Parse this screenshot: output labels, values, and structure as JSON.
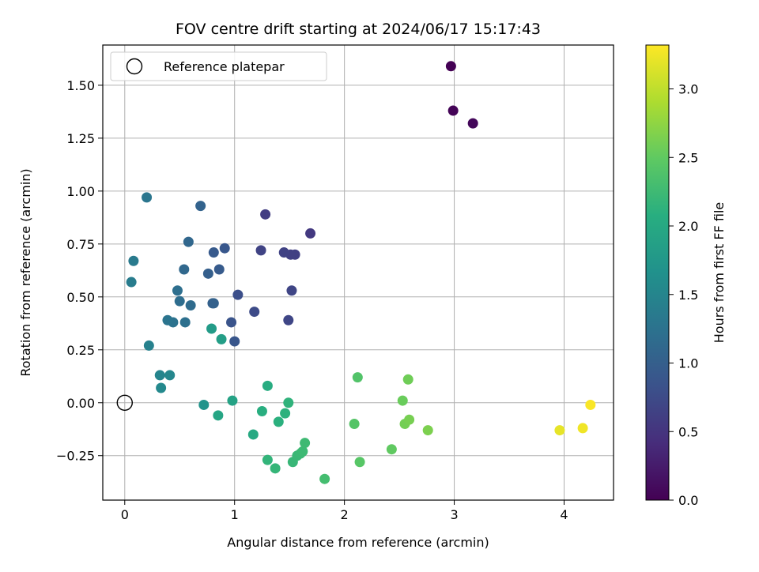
{
  "chart_data": {
    "type": "scatter",
    "title": "FOV centre drift starting at 2024/06/17 15:17:43",
    "xlabel": "Angular distance from reference (arcmin)",
    "ylabel": "Rotation from reference (arcmin)",
    "xlim": [
      -0.2,
      4.45
    ],
    "ylim": [
      -0.46,
      1.69
    ],
    "x_ticks": [
      0,
      1,
      2,
      3,
      4
    ],
    "x_tick_labels": [
      "0",
      "1",
      "2",
      "3",
      "4"
    ],
    "y_ticks": [
      -0.25,
      0.0,
      0.25,
      0.5,
      0.75,
      1.0,
      1.25,
      1.5
    ],
    "y_tick_labels": [
      "−0.25",
      "0.00",
      "0.25",
      "0.50",
      "0.75",
      "1.00",
      "1.25",
      "1.50"
    ],
    "grid": true,
    "legend": {
      "placement": "top-left",
      "entries": [
        "Reference platepar"
      ]
    },
    "reference_point": {
      "x": 0,
      "y": 0,
      "marker": "open-circle",
      "color": "#000000"
    },
    "colorbar": {
      "label": "Hours from first FF file",
      "colormap": "viridis",
      "range": [
        0,
        3.32
      ],
      "ticks": [
        0.0,
        0.5,
        1.0,
        1.5,
        2.0,
        2.5,
        3.0
      ],
      "tick_labels": [
        "0.0",
        "0.5",
        "1.0",
        "1.5",
        "2.0",
        "2.5",
        "3.0"
      ]
    },
    "points": [
      {
        "x": 2.97,
        "y": 1.59,
        "t": 0.0
      },
      {
        "x": 2.99,
        "y": 1.38,
        "t": 0.03
      },
      {
        "x": 3.17,
        "y": 1.32,
        "t": 0.06
      },
      {
        "x": 1.69,
        "y": 0.8,
        "t": 0.55
      },
      {
        "x": 1.28,
        "y": 0.89,
        "t": 0.6
      },
      {
        "x": 1.55,
        "y": 0.7,
        "t": 0.62
      },
      {
        "x": 1.51,
        "y": 0.7,
        "t": 0.63
      },
      {
        "x": 1.45,
        "y": 0.71,
        "t": 0.65
      },
      {
        "x": 1.24,
        "y": 0.72,
        "t": 0.66
      },
      {
        "x": 1.52,
        "y": 0.53,
        "t": 0.68
      },
      {
        "x": 1.49,
        "y": 0.39,
        "t": 0.7
      },
      {
        "x": 1.18,
        "y": 0.43,
        "t": 0.75
      },
      {
        "x": 1.03,
        "y": 0.51,
        "t": 0.8
      },
      {
        "x": 0.97,
        "y": 0.38,
        "t": 0.85
      },
      {
        "x": 1.0,
        "y": 0.29,
        "t": 0.88
      },
      {
        "x": 0.91,
        "y": 0.73,
        "t": 0.9
      },
      {
        "x": 0.81,
        "y": 0.71,
        "t": 0.93
      },
      {
        "x": 0.86,
        "y": 0.63,
        "t": 0.95
      },
      {
        "x": 0.76,
        "y": 0.61,
        "t": 1.0
      },
      {
        "x": 0.81,
        "y": 0.47,
        "t": 1.02
      },
      {
        "x": 0.8,
        "y": 0.47,
        "t": 1.03
      },
      {
        "x": 0.69,
        "y": 0.93,
        "t": 1.05
      },
      {
        "x": 0.58,
        "y": 0.76,
        "t": 1.1
      },
      {
        "x": 0.54,
        "y": 0.63,
        "t": 1.12
      },
      {
        "x": 0.6,
        "y": 0.46,
        "t": 1.15
      },
      {
        "x": 0.5,
        "y": 0.48,
        "t": 1.18
      },
      {
        "x": 0.48,
        "y": 0.53,
        "t": 1.2
      },
      {
        "x": 0.55,
        "y": 0.38,
        "t": 1.22
      },
      {
        "x": 0.44,
        "y": 0.38,
        "t": 1.25
      },
      {
        "x": 0.39,
        "y": 0.39,
        "t": 1.27
      },
      {
        "x": 0.2,
        "y": 0.97,
        "t": 1.3
      },
      {
        "x": 0.08,
        "y": 0.67,
        "t": 1.35
      },
      {
        "x": 0.06,
        "y": 0.57,
        "t": 1.38
      },
      {
        "x": 0.22,
        "y": 0.27,
        "t": 1.45
      },
      {
        "x": 0.32,
        "y": 0.13,
        "t": 1.5
      },
      {
        "x": 0.41,
        "y": 0.13,
        "t": 1.52
      },
      {
        "x": 0.33,
        "y": 0.07,
        "t": 1.55
      },
      {
        "x": 0.72,
        "y": -0.01,
        "t": 1.7
      },
      {
        "x": 0.79,
        "y": 0.35,
        "t": 1.8
      },
      {
        "x": 0.88,
        "y": 0.3,
        "t": 1.85
      },
      {
        "x": 0.98,
        "y": 0.01,
        "t": 1.9
      },
      {
        "x": 0.85,
        "y": -0.06,
        "t": 1.95
      },
      {
        "x": 1.17,
        "y": -0.15,
        "t": 2.0
      },
      {
        "x": 1.3,
        "y": 0.08,
        "t": 2.05
      },
      {
        "x": 1.25,
        "y": -0.04,
        "t": 2.08
      },
      {
        "x": 1.4,
        "y": -0.09,
        "t": 2.1
      },
      {
        "x": 1.46,
        "y": -0.05,
        "t": 2.12
      },
      {
        "x": 1.49,
        "y": 0.0,
        "t": 2.14
      },
      {
        "x": 1.3,
        "y": -0.27,
        "t": 2.16
      },
      {
        "x": 1.37,
        "y": -0.31,
        "t": 2.18
      },
      {
        "x": 1.53,
        "y": -0.28,
        "t": 2.2
      },
      {
        "x": 1.57,
        "y": -0.25,
        "t": 2.22
      },
      {
        "x": 1.6,
        "y": -0.24,
        "t": 2.23
      },
      {
        "x": 1.62,
        "y": -0.23,
        "t": 2.24
      },
      {
        "x": 1.64,
        "y": -0.19,
        "t": 2.25
      },
      {
        "x": 1.82,
        "y": -0.36,
        "t": 2.3
      },
      {
        "x": 2.12,
        "y": 0.12,
        "t": 2.4
      },
      {
        "x": 2.09,
        "y": -0.1,
        "t": 2.42
      },
      {
        "x": 2.14,
        "y": -0.28,
        "t": 2.44
      },
      {
        "x": 2.43,
        "y": -0.22,
        "t": 2.5
      },
      {
        "x": 2.53,
        "y": 0.01,
        "t": 2.55
      },
      {
        "x": 2.58,
        "y": 0.11,
        "t": 2.58
      },
      {
        "x": 2.55,
        "y": -0.1,
        "t": 2.6
      },
      {
        "x": 2.59,
        "y": -0.08,
        "t": 2.62
      },
      {
        "x": 2.76,
        "y": -0.13,
        "t": 2.65
      },
      {
        "x": 3.96,
        "y": -0.13,
        "t": 3.2
      },
      {
        "x": 4.17,
        "y": -0.12,
        "t": 3.25
      },
      {
        "x": 4.24,
        "y": -0.01,
        "t": 3.3
      }
    ]
  }
}
